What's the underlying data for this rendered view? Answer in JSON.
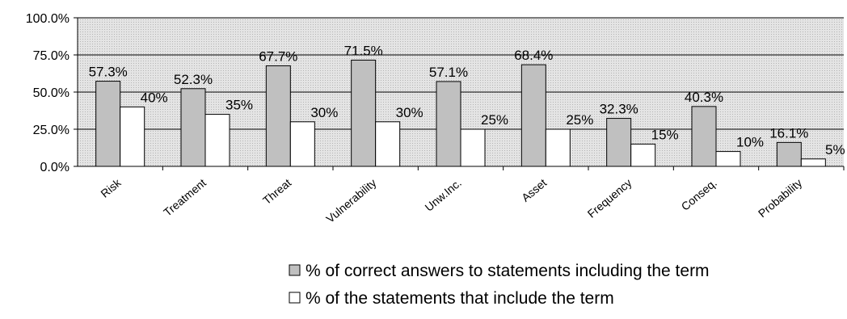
{
  "chart_data": {
    "type": "bar",
    "title": "",
    "xlabel": "",
    "ylabel": "",
    "ylim": [
      0,
      100
    ],
    "yticks": [
      "0.0%",
      "25.0%",
      "50.0%",
      "75.0%",
      "100.0%"
    ],
    "grid": true,
    "legend_position": "bottom",
    "categories": [
      "Risk",
      "Treatment",
      "Threat",
      "Vulnerability",
      "Unw.Inc.",
      "Asset",
      "Frequency",
      "Conseq.",
      "Probability"
    ],
    "series": [
      {
        "name": "% of correct answers to statements including the term",
        "color": "#c0c0c0",
        "values": [
          57.3,
          52.3,
          67.7,
          71.5,
          57.1,
          68.4,
          32.3,
          40.3,
          16.1
        ],
        "labels": [
          "57.3%",
          "52.3%",
          "67.7%",
          "71.5%",
          "57.1%",
          "68.4%",
          "32.3%",
          "40.3%",
          "16.1%"
        ]
      },
      {
        "name": "% of the statements that include the term",
        "color": "#ffffff",
        "values": [
          40,
          35,
          30,
          30,
          25,
          25,
          15,
          10,
          5
        ],
        "labels": [
          "40%",
          "35%",
          "30%",
          "30%",
          "25%",
          "25%",
          "15%",
          "10%",
          "5%"
        ]
      }
    ]
  }
}
